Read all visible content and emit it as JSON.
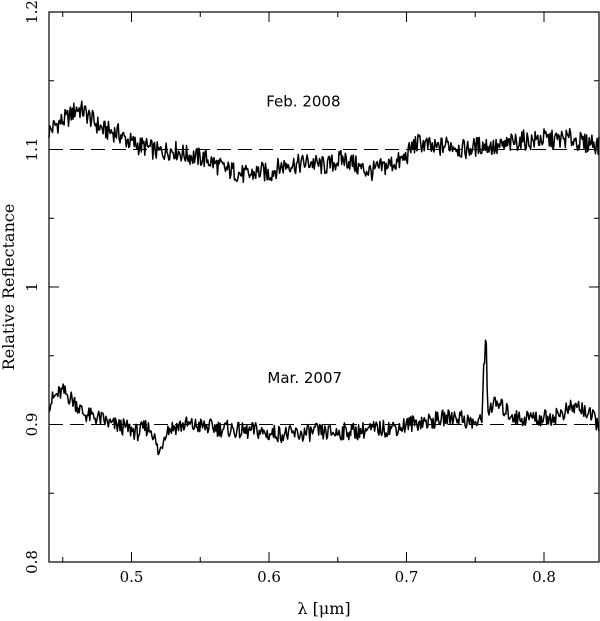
{
  "chart_data": {
    "type": "line",
    "xlabel": "λ [μm]",
    "ylabel": "Relative Reflectance",
    "xlim": [
      0.44,
      0.84
    ],
    "ylim": [
      0.8,
      1.2
    ],
    "x_ticks": [
      {
        "value": 0.5,
        "label": "0.5"
      },
      {
        "value": 0.6,
        "label": "0.6"
      },
      {
        "value": 0.7,
        "label": "0.7"
      },
      {
        "value": 0.8,
        "label": "0.8"
      }
    ],
    "y_ticks": [
      {
        "value": 0.8,
        "label": "0.8"
      },
      {
        "value": 0.9,
        "label": "0.9"
      },
      {
        "value": 1.0,
        "label": "1"
      },
      {
        "value": 1.1,
        "label": "1.1"
      },
      {
        "value": 1.2,
        "label": "1.2"
      }
    ],
    "reference_lines": [
      1.1,
      0.9
    ],
    "annotations": [
      {
        "text": "Feb. 2008",
        "x": 0.625,
        "y": 1.1345
      },
      {
        "text": "Mar. 2007",
        "x": 0.626,
        "y": 0.9335
      }
    ],
    "series": [
      {
        "x": [
          0.44,
          0.445,
          0.45,
          0.455,
          0.46,
          0.465,
          0.47,
          0.475,
          0.48,
          0.485,
          0.49,
          0.495,
          0.5,
          0.505,
          0.51,
          0.515,
          0.52,
          0.525,
          0.53,
          0.535,
          0.54,
          0.545,
          0.55,
          0.555,
          0.56,
          0.565,
          0.57,
          0.575,
          0.58,
          0.585,
          0.59,
          0.595,
          0.6,
          0.605,
          0.61,
          0.615,
          0.62,
          0.625,
          0.63,
          0.635,
          0.64,
          0.645,
          0.65,
          0.655,
          0.66,
          0.665,
          0.67,
          0.675,
          0.68,
          0.685,
          0.69,
          0.695,
          0.7,
          0.705,
          0.71,
          0.715,
          0.72,
          0.725,
          0.73,
          0.735,
          0.74,
          0.745,
          0.75,
          0.755,
          0.76,
          0.765,
          0.77,
          0.775,
          0.78,
          0.785,
          0.79,
          0.795,
          0.8,
          0.805,
          0.81,
          0.815,
          0.82,
          0.825,
          0.83,
          0.835,
          0.84
        ],
        "values": [
          1.113,
          1.118,
          1.121,
          1.124,
          1.13,
          1.128,
          1.123,
          1.118,
          1.114,
          1.113,
          1.112,
          1.108,
          1.105,
          1.103,
          1.102,
          1.1,
          1.098,
          1.099,
          1.1,
          1.098,
          1.096,
          1.095,
          1.094,
          1.093,
          1.09,
          1.087,
          1.085,
          1.084,
          1.082,
          1.081,
          1.083,
          1.084,
          1.082,
          1.086,
          1.088,
          1.09,
          1.089,
          1.09,
          1.091,
          1.089,
          1.088,
          1.089,
          1.092,
          1.093,
          1.091,
          1.087,
          1.085,
          1.084,
          1.086,
          1.088,
          1.09,
          1.091,
          1.095,
          1.103,
          1.105,
          1.103,
          1.1,
          1.102,
          1.104,
          1.103,
          1.1,
          1.1,
          1.102,
          1.103,
          1.103,
          1.101,
          1.102,
          1.104,
          1.106,
          1.107,
          1.106,
          1.107,
          1.108,
          1.107,
          1.107,
          1.108,
          1.108,
          1.106,
          1.104,
          1.106,
          1.102
        ]
      },
      {
        "x": [
          0.44,
          0.445,
          0.45,
          0.455,
          0.46,
          0.465,
          0.47,
          0.475,
          0.48,
          0.485,
          0.49,
          0.495,
          0.5,
          0.505,
          0.51,
          0.515,
          0.52,
          0.525,
          0.53,
          0.535,
          0.54,
          0.545,
          0.55,
          0.555,
          0.56,
          0.565,
          0.57,
          0.575,
          0.58,
          0.585,
          0.59,
          0.595,
          0.6,
          0.605,
          0.61,
          0.615,
          0.62,
          0.625,
          0.63,
          0.635,
          0.64,
          0.645,
          0.65,
          0.655,
          0.66,
          0.665,
          0.67,
          0.675,
          0.68,
          0.685,
          0.69,
          0.695,
          0.7,
          0.705,
          0.71,
          0.715,
          0.72,
          0.725,
          0.73,
          0.735,
          0.74,
          0.745,
          0.75,
          0.755,
          0.756,
          0.758,
          0.759,
          0.76,
          0.765,
          0.77,
          0.775,
          0.78,
          0.785,
          0.79,
          0.795,
          0.8,
          0.805,
          0.81,
          0.815,
          0.82,
          0.825,
          0.83,
          0.835,
          0.84
        ],
        "values": [
          0.915,
          0.921,
          0.924,
          0.92,
          0.915,
          0.908,
          0.906,
          0.905,
          0.903,
          0.9,
          0.899,
          0.898,
          0.896,
          0.894,
          0.898,
          0.896,
          0.878,
          0.896,
          0.898,
          0.899,
          0.9,
          0.899,
          0.899,
          0.898,
          0.898,
          0.897,
          0.897,
          0.896,
          0.895,
          0.895,
          0.896,
          0.894,
          0.893,
          0.894,
          0.893,
          0.893,
          0.893,
          0.893,
          0.894,
          0.895,
          0.894,
          0.894,
          0.894,
          0.895,
          0.895,
          0.895,
          0.896,
          0.896,
          0.897,
          0.897,
          0.898,
          0.898,
          0.9,
          0.901,
          0.902,
          0.902,
          0.903,
          0.904,
          0.905,
          0.906,
          0.905,
          0.902,
          0.901,
          0.902,
          0.945,
          0.96,
          0.91,
          0.912,
          0.915,
          0.912,
          0.908,
          0.905,
          0.904,
          0.906,
          0.904,
          0.905,
          0.905,
          0.907,
          0.909,
          0.912,
          0.913,
          0.91,
          0.905,
          0.9
        ]
      }
    ]
  }
}
